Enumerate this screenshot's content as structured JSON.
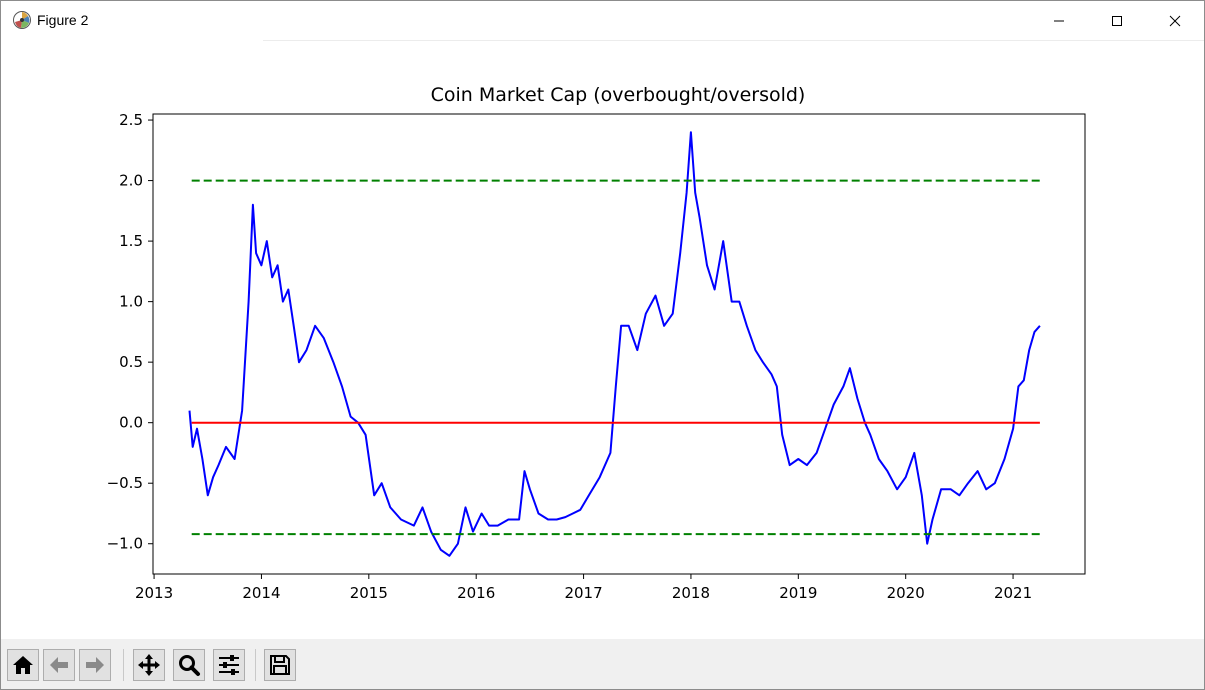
{
  "window": {
    "title": "Figure 2",
    "controls": [
      "minimize",
      "maximize",
      "close"
    ]
  },
  "toolbar": {
    "buttons": [
      {
        "name": "home",
        "icon": "home-icon"
      },
      {
        "name": "back",
        "icon": "arrow-left-icon"
      },
      {
        "name": "forward",
        "icon": "arrow-right-icon"
      },
      {
        "name": "pan",
        "icon": "move-icon"
      },
      {
        "name": "zoom",
        "icon": "magnifier-icon"
      },
      {
        "name": "configure-subplots",
        "icon": "sliders-icon"
      },
      {
        "name": "save",
        "icon": "floppy-disk-icon"
      }
    ]
  },
  "chart_data": {
    "type": "line",
    "title": "Coin Market Cap (overbought/oversold)",
    "xlabel": "",
    "ylabel": "",
    "xlim": [
      2012.99,
      2021.67
    ],
    "ylim": [
      -1.25,
      2.55
    ],
    "x_ticks": [
      "2013",
      "2014",
      "2015",
      "2016",
      "2017",
      "2018",
      "2019",
      "2020",
      "2021"
    ],
    "y_ticks": [
      "−1.0",
      "−0.5",
      "0.0",
      "0.5",
      "1.0",
      "1.5",
      "2.0",
      "2.5"
    ],
    "grid": false,
    "legend": "none",
    "series": [
      {
        "color": "#0000ff",
        "style": "solid",
        "x": [
          2013.33,
          2013.36,
          2013.4,
          2013.45,
          2013.5,
          2013.55,
          2013.6,
          2013.67,
          2013.75,
          2013.82,
          2013.88,
          2013.92,
          2013.95,
          2014.0,
          2014.05,
          2014.1,
          2014.15,
          2014.2,
          2014.25,
          2014.3,
          2014.35,
          2014.42,
          2014.5,
          2014.58,
          2014.67,
          2014.75,
          2014.83,
          2014.9,
          2014.97,
          2015.05,
          2015.12,
          2015.2,
          2015.3,
          2015.42,
          2015.5,
          2015.58,
          2015.67,
          2015.75,
          2015.83,
          2015.9,
          2015.97,
          2016.05,
          2016.12,
          2016.2,
          2016.3,
          2016.4,
          2016.45,
          2016.5,
          2016.58,
          2016.67,
          2016.75,
          2016.83,
          2016.9,
          2016.97,
          2017.05,
          2017.15,
          2017.25,
          2017.3,
          2017.35,
          2017.42,
          2017.5,
          2017.58,
          2017.67,
          2017.75,
          2017.83,
          2017.9,
          2017.96,
          2018.0,
          2018.04,
          2018.08,
          2018.15,
          2018.22,
          2018.3,
          2018.38,
          2018.45,
          2018.52,
          2018.6,
          2018.67,
          2018.75,
          2018.8,
          2018.85,
          2018.92,
          2019.0,
          2019.08,
          2019.17,
          2019.25,
          2019.33,
          2019.42,
          2019.48,
          2019.55,
          2019.62,
          2019.67,
          2019.75,
          2019.83,
          2019.92,
          2020.0,
          2020.08,
          2020.15,
          2020.2,
          2020.25,
          2020.33,
          2020.42,
          2020.5,
          2020.58,
          2020.67,
          2020.75,
          2020.83,
          2020.92,
          2021.0,
          2021.05,
          2021.1,
          2021.15,
          2021.2,
          2021.25
        ],
        "y": [
          0.1,
          -0.2,
          -0.05,
          -0.3,
          -0.6,
          -0.45,
          -0.35,
          -0.2,
          -0.3,
          0.1,
          1.0,
          1.8,
          1.4,
          1.3,
          1.5,
          1.2,
          1.3,
          1.0,
          1.1,
          0.8,
          0.5,
          0.6,
          0.8,
          0.7,
          0.5,
          0.3,
          0.05,
          0.0,
          -0.1,
          -0.6,
          -0.5,
          -0.7,
          -0.8,
          -0.85,
          -0.7,
          -0.9,
          -1.05,
          -1.1,
          -1.0,
          -0.7,
          -0.9,
          -0.75,
          -0.85,
          -0.85,
          -0.8,
          -0.8,
          -0.4,
          -0.55,
          -0.75,
          -0.8,
          -0.8,
          -0.78,
          -0.75,
          -0.72,
          -0.6,
          -0.45,
          -0.25,
          0.3,
          0.8,
          0.8,
          0.6,
          0.9,
          1.05,
          0.8,
          0.9,
          1.4,
          1.9,
          2.4,
          1.9,
          1.7,
          1.3,
          1.1,
          1.5,
          1.0,
          1.0,
          0.8,
          0.6,
          0.5,
          0.4,
          0.3,
          -0.1,
          -0.35,
          -0.3,
          -0.35,
          -0.25,
          -0.05,
          0.15,
          0.3,
          0.45,
          0.2,
          0.0,
          -0.1,
          -0.3,
          -0.4,
          -0.55,
          -0.45,
          -0.25,
          -0.6,
          -1.0,
          -0.8,
          -0.55,
          -0.55,
          -0.6,
          -0.5,
          -0.4,
          -0.55,
          -0.5,
          -0.3,
          -0.05,
          0.3,
          0.35,
          0.6,
          0.75,
          0.8
        ]
      },
      {
        "color": "#ff0000",
        "style": "solid",
        "x": [
          2013.35,
          2021.25
        ],
        "y": [
          0.0,
          0.0
        ]
      },
      {
        "color": "#008000",
        "style": "dashed",
        "x": [
          2013.35,
          2021.25
        ],
        "y": [
          2.0,
          2.0
        ]
      },
      {
        "color": "#008000",
        "style": "dashed",
        "x": [
          2013.35,
          2021.25
        ],
        "y": [
          -0.92,
          -0.92
        ]
      }
    ]
  }
}
